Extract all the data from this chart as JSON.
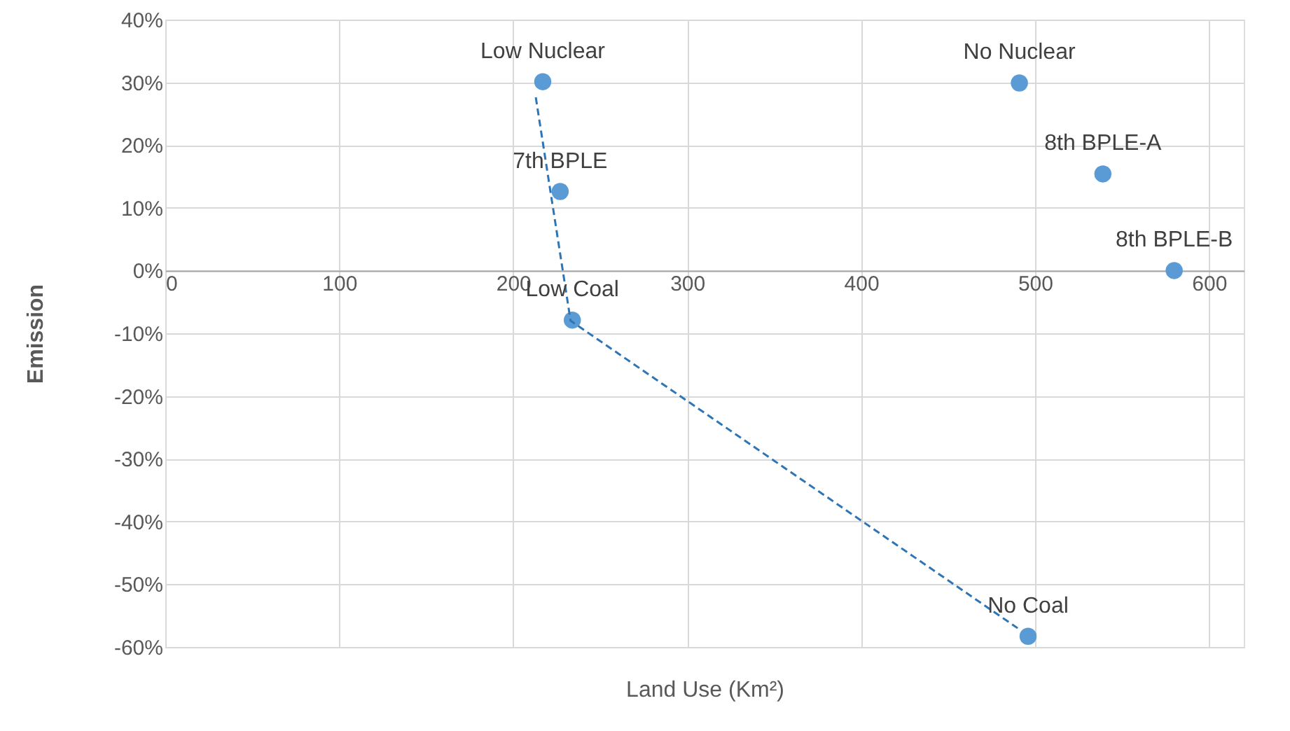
{
  "chart_data": {
    "type": "scatter",
    "xlabel": "Land Use (Km²)",
    "ylabel": "Emission",
    "xlim": [
      0,
      620
    ],
    "xticks": [
      0,
      100,
      200,
      300,
      400,
      500,
      600
    ],
    "ylim": [
      -60,
      40
    ],
    "yticks": [
      {
        "value": -60,
        "label": "-60%"
      },
      {
        "value": -50,
        "label": "-50%"
      },
      {
        "value": -40,
        "label": "-40%"
      },
      {
        "value": -30,
        "label": "-30%"
      },
      {
        "value": -20,
        "label": "-20%"
      },
      {
        "value": -10,
        "label": "-10%"
      },
      {
        "value": 0,
        "label": "0%"
      },
      {
        "value": 10,
        "label": "10%"
      },
      {
        "value": 20,
        "label": "20%"
      },
      {
        "value": 30,
        "label": "30%"
      },
      {
        "value": 40,
        "label": "40%"
      }
    ],
    "grid": true,
    "marker": "circle",
    "series": [
      {
        "color": "#5b9bd5",
        "x": [
          217,
          227,
          234,
          496,
          491,
          539,
          580
        ],
        "values": [
          30.1,
          12.6,
          -7.9,
          -58.3,
          29.9,
          15.4,
          0
        ]
      },
      {
        "type": "line",
        "color": "#2e75b6",
        "line_style": "dashed",
        "marker": "none",
        "x": [
          213,
          233,
          490
        ],
        "values": [
          27.6,
          -8,
          -57
        ]
      }
    ],
    "annotations": [
      {
        "text": "Low Nuclear",
        "x": 217,
        "y": 30.1
      },
      {
        "text": "7th BPLE",
        "x": 227,
        "y": 12.6
      },
      {
        "text": "Low Coal",
        "x": 234,
        "y": -7.9
      },
      {
        "text": "No Coal",
        "x": 496,
        "y": -58.3
      },
      {
        "text": "No Nuclear",
        "x": 491,
        "y": 29.9
      },
      {
        "text": "8th BPLE-A",
        "x": 539,
        "y": 15.4
      },
      {
        "text": "8th BPLE-B",
        "x": 580,
        "y": 0
      }
    ]
  }
}
